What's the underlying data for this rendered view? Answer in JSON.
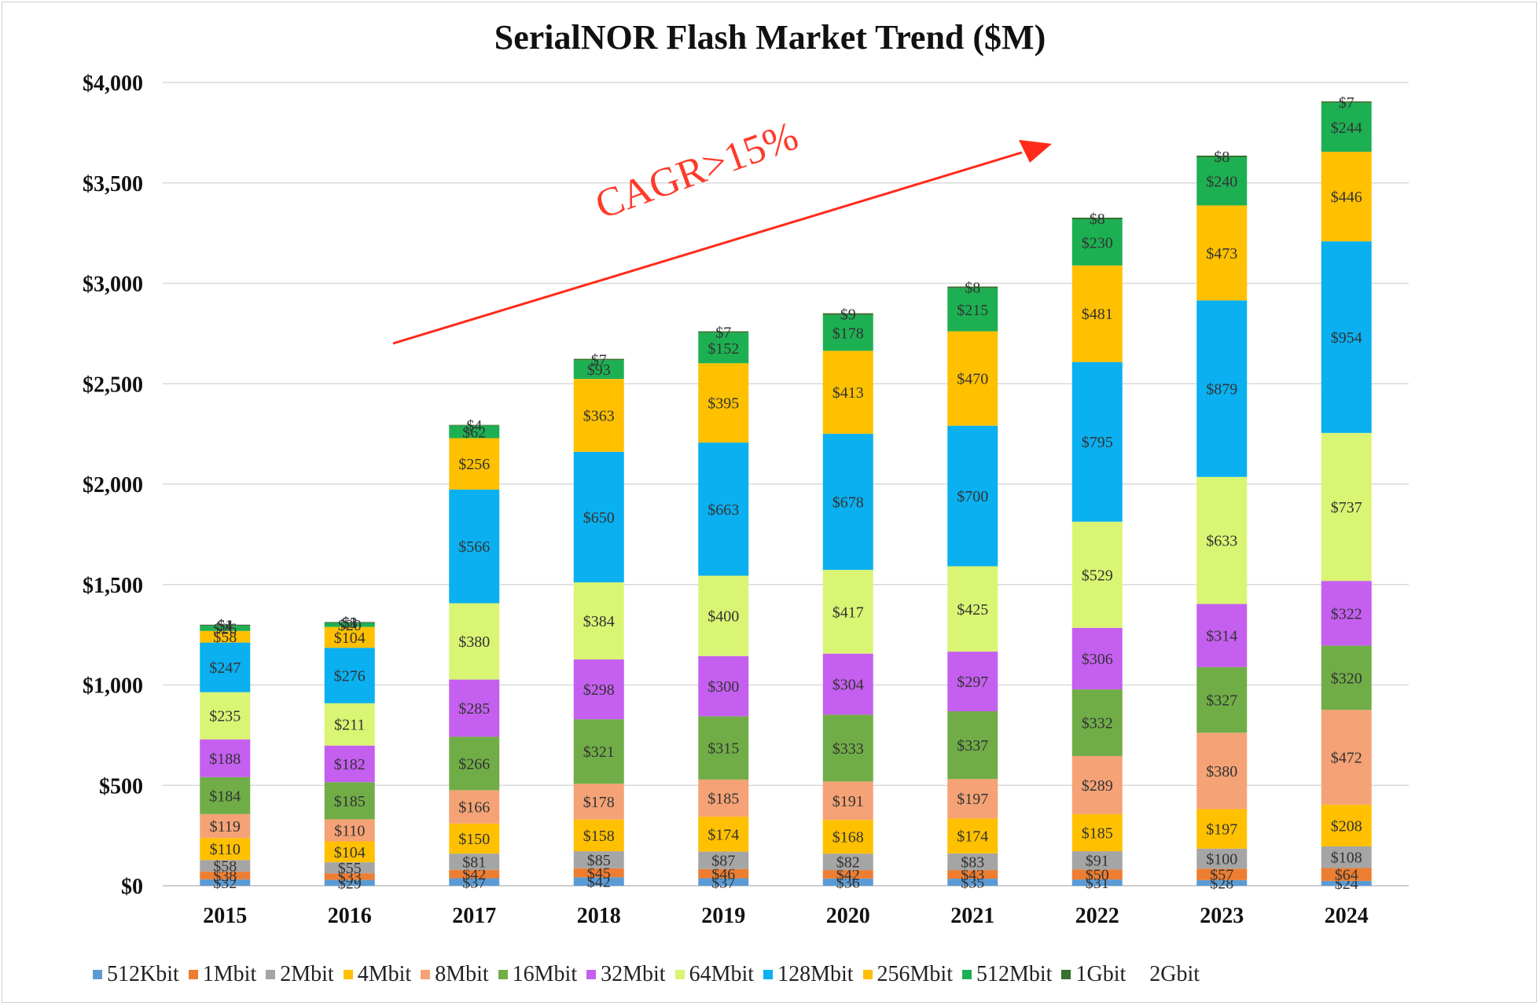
{
  "chart_data": {
    "type": "bar",
    "stacked": true,
    "title": "SerialNOR Flash Market Trend ($M)",
    "categories": [
      "2015",
      "2016",
      "2017",
      "2018",
      "2019",
      "2020",
      "2021",
      "2022",
      "2023",
      "2024"
    ],
    "ylim": [
      0,
      4000
    ],
    "yticks": [
      "$0",
      "$500",
      "$1,000",
      "$1,500",
      "$2,000",
      "$2,500",
      "$3,000",
      "$3,500",
      "$4,000"
    ],
    "grid": true,
    "legend_position": "bottom",
    "annotation": "CAGR>15%",
    "series": [
      {
        "name": "512Kbit",
        "color": "#5b9bd5",
        "values": [
          32,
          29,
          37,
          42,
          37,
          36,
          35,
          31,
          28,
          24
        ]
      },
      {
        "name": "1Mbit",
        "color": "#ed7d31",
        "values": [
          38,
          33,
          42,
          45,
          46,
          42,
          43,
          50,
          57,
          64
        ]
      },
      {
        "name": "2Mbit",
        "color": "#a5a5a5",
        "values": [
          58,
          55,
          81,
          85,
          87,
          82,
          83,
          91,
          100,
          108
        ]
      },
      {
        "name": "4Mbit",
        "color": "#ffc000",
        "values": [
          110,
          104,
          150,
          158,
          174,
          168,
          174,
          185,
          197,
          208
        ]
      },
      {
        "name": "8Mbit",
        "color": "#f4a276",
        "values": [
          119,
          110,
          166,
          178,
          185,
          191,
          197,
          289,
          380,
          472
        ]
      },
      {
        "name": "16Mbit",
        "color": "#70ad47",
        "values": [
          184,
          185,
          266,
          321,
          315,
          333,
          337,
          332,
          327,
          320
        ]
      },
      {
        "name": "32Mbit",
        "color": "#c55ff0",
        "values": [
          188,
          182,
          285,
          298,
          300,
          304,
          297,
          306,
          314,
          322
        ]
      },
      {
        "name": "64Mbit",
        "color": "#d9f573",
        "values": [
          235,
          211,
          380,
          384,
          400,
          417,
          425,
          529,
          633,
          737
        ]
      },
      {
        "name": "128Mbit",
        "color": "#0ab0f0",
        "values": [
          247,
          276,
          566,
          650,
          663,
          678,
          700,
          795,
          879,
          954
        ]
      },
      {
        "name": "256Mbit",
        "color": "#ffc000",
        "values": [
          58,
          104,
          256,
          363,
          395,
          413,
          470,
          481,
          473,
          446
        ]
      },
      {
        "name": "512Mbit",
        "color": "#1db053",
        "values": [
          26,
          20,
          62,
          93,
          152,
          178,
          215,
          230,
          240,
          244
        ]
      },
      {
        "name": "1Gbit",
        "color": "#38702e",
        "values": [
          4,
          3,
          4,
          7,
          7,
          9,
          8,
          8,
          8,
          7
        ]
      },
      {
        "name": "2Gbit",
        "color": "#2f4f4f",
        "values": [
          1,
          1,
          0,
          0,
          0,
          0,
          0,
          0,
          0,
          0
        ]
      }
    ]
  }
}
